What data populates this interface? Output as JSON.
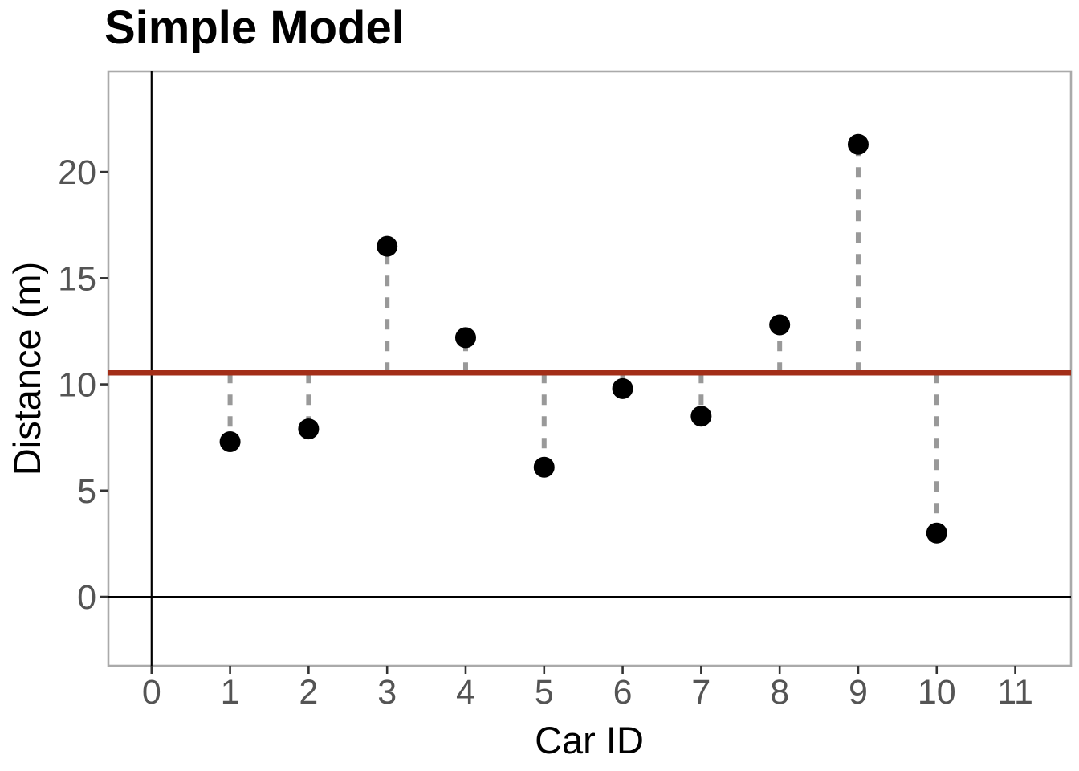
{
  "chart_data": {
    "type": "scatter",
    "title": "Simple Model",
    "xlabel": "Car ID",
    "ylabel": "Distance (m)",
    "x": [
      1,
      2,
      3,
      4,
      5,
      6,
      7,
      8,
      9,
      10
    ],
    "y": [
      7.3,
      7.9,
      16.5,
      12.2,
      6.1,
      9.8,
      8.5,
      12.8,
      21.3,
      3.0
    ],
    "model_line": {
      "orientation": "horizontal",
      "value": 10.54,
      "style": "solid"
    },
    "residual_lines": {
      "style": "dashed",
      "connects": "each point to model line"
    },
    "x_ticks": [
      0,
      1,
      2,
      3,
      4,
      5,
      6,
      7,
      8,
      9,
      10,
      11
    ],
    "y_ticks": [
      0,
      5,
      10,
      15,
      20
    ],
    "xlim": [
      -0.55,
      11.71
    ],
    "ylim": [
      -3.25,
      24.73
    ],
    "zero_lines": {
      "vline_x": 0,
      "hline_y": 0
    },
    "grid": false,
    "legend": "none",
    "colors": {
      "point": "#000000",
      "model_line": "#A32E18",
      "residual_line": "#999999",
      "panel_border": "#AAAAAA",
      "zero_line": "#000000",
      "tick_mark": "#333333",
      "tick_label": "#545454",
      "text": "#000000",
      "background": "#FFFFFF"
    }
  }
}
